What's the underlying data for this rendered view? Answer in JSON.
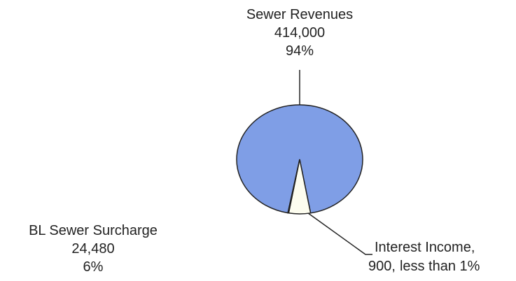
{
  "chart_data": {
    "type": "pie",
    "categories": [
      "Sewer Revenues",
      "BL Sewer Surcharge",
      "Interest Income,"
    ],
    "values": [
      414000,
      24480,
      900
    ],
    "value_labels": [
      "414,000",
      "24,480",
      "900,"
    ],
    "percent_labels": [
      "94%",
      "6%",
      "less than 1%"
    ],
    "colors": [
      "#7f9ee6",
      "#fdfdef",
      "#fdfdef"
    ]
  }
}
